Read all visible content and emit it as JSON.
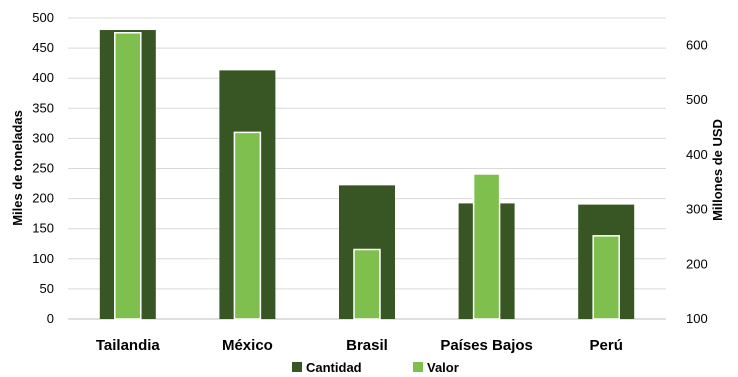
{
  "chart_data": {
    "type": "bar",
    "categories": [
      "Tailandia",
      "México",
      "Brasil",
      "Países Bajos",
      "Perú"
    ],
    "series": [
      {
        "name": "Cantidad",
        "axis": "left",
        "color": "#375623",
        "values": [
          480,
          413,
          222,
          192,
          190
        ]
      },
      {
        "name": "Valor",
        "axis": "right",
        "color": "#7fbf4d",
        "values": [
          623,
          441,
          227,
          365,
          252
        ]
      }
    ],
    "ylabel": "Miles de toneladas",
    "y2label": "Millones de USD",
    "ylim": [
      0,
      500
    ],
    "y2lim": [
      100,
      650
    ],
    "yticks": [
      0,
      50,
      100,
      150,
      200,
      250,
      300,
      350,
      400,
      450,
      500
    ],
    "y2ticks": [
      100,
      200,
      300,
      400,
      500,
      600
    ],
    "grid": true,
    "legend_position": "bottom"
  }
}
